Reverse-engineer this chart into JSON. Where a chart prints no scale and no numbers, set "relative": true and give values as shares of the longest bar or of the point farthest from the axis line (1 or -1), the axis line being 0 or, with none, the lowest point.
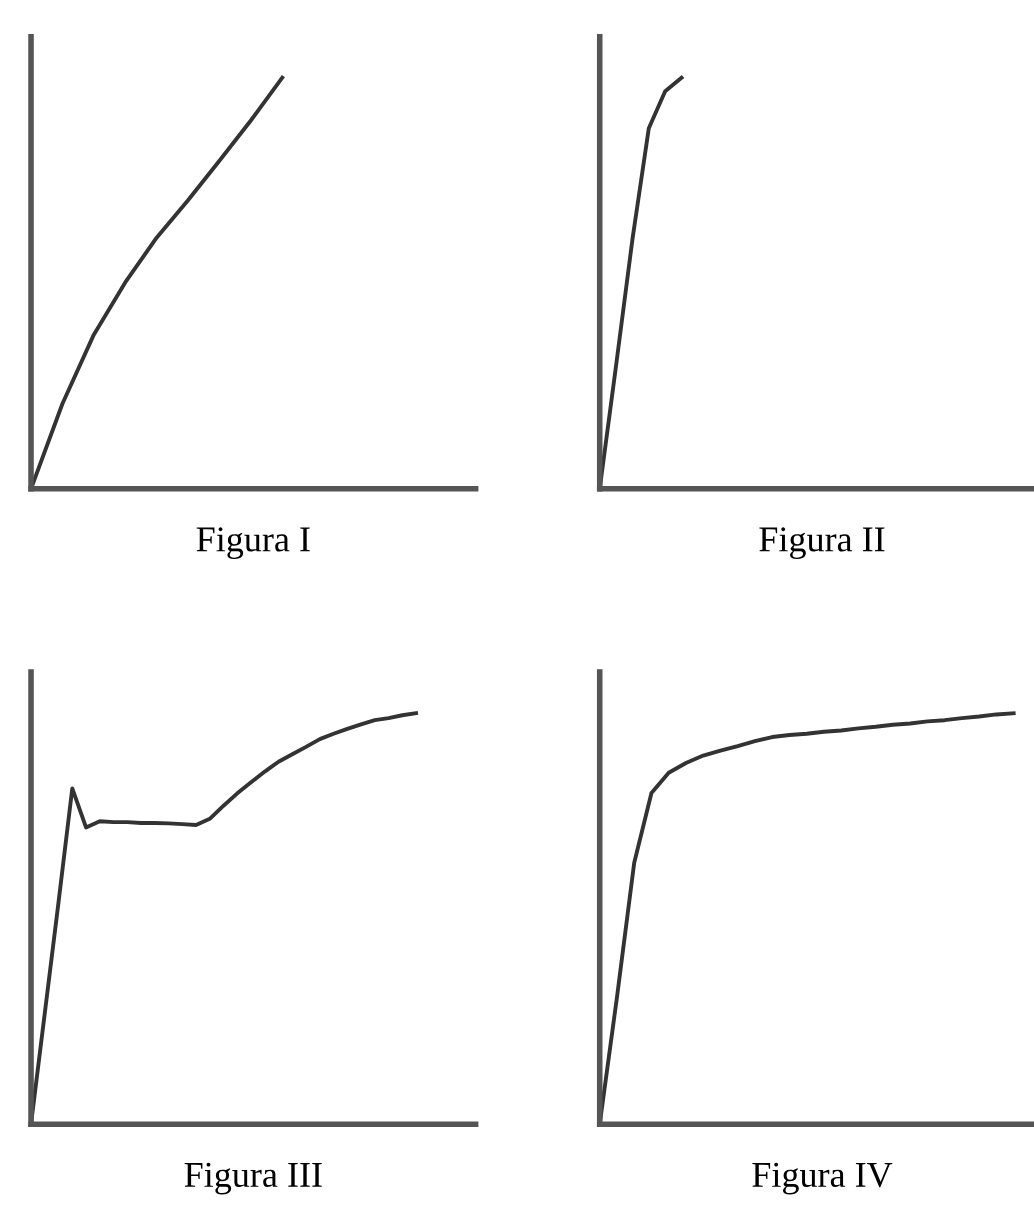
{
  "chart_data": [
    {
      "type": "line",
      "relative": true,
      "xlabel": "Figura I",
      "categories": [
        null,
        null,
        null,
        null,
        null,
        null,
        null,
        null,
        null
      ],
      "series": [
        {
          "color": "#333333",
          "values": [
            0,
            0.207,
            0.375,
            0.502,
            0.611,
            0.702,
            0.798,
            0.896,
            1
          ]
        }
      ]
    },
    {
      "type": "line",
      "relative": true,
      "xlabel": "Figura II",
      "categories": [
        null,
        null,
        null,
        null,
        null,
        null
      ],
      "series": [
        {
          "color": "#333333",
          "values": [
            0,
            0.3,
            0.607,
            0.877,
            0.967,
            1
          ]
        }
      ]
    },
    {
      "type": "line",
      "relative": true,
      "xlabel": "Figura III",
      "categories": [
        null,
        null,
        null,
        null,
        null,
        null,
        null,
        null,
        null,
        null,
        null,
        null,
        null,
        null,
        null,
        null,
        null,
        null,
        null,
        null,
        null,
        null,
        null,
        null,
        null,
        null,
        null,
        null,
        null
      ],
      "series": [
        {
          "color": "#333333",
          "values": [
            0,
            0.27,
            0.54,
            0.817,
            0.722,
            0.737,
            0.735,
            0.735,
            0.733,
            0.733,
            0.732,
            0.73,
            0.728,
            0.743,
            0.775,
            0.805,
            0.832,
            0.858,
            0.882,
            0.9,
            0.918,
            0.937,
            0.95,
            0.962,
            0.973,
            0.983,
            0.988,
            0.995,
            1
          ]
        }
      ]
    },
    {
      "type": "line",
      "relative": true,
      "xlabel": "Figura IV",
      "categories": [
        null,
        null,
        null,
        null,
        null,
        null,
        null,
        null,
        null,
        null,
        null,
        null,
        null,
        null,
        null,
        null,
        null,
        null,
        null,
        null,
        null,
        null,
        null,
        null,
        null
      ],
      "series": [
        {
          "color": "#333333",
          "values": [
            0,
            0.309,
            0.636,
            0.806,
            0.855,
            0.879,
            0.897,
            0.909,
            0.92,
            0.932,
            0.942,
            0.947,
            0.95,
            0.955,
            0.958,
            0.963,
            0.967,
            0.972,
            0.975,
            0.98,
            0.983,
            0.988,
            0.992,
            0.997,
            1
          ]
        }
      ]
    }
  ]
}
